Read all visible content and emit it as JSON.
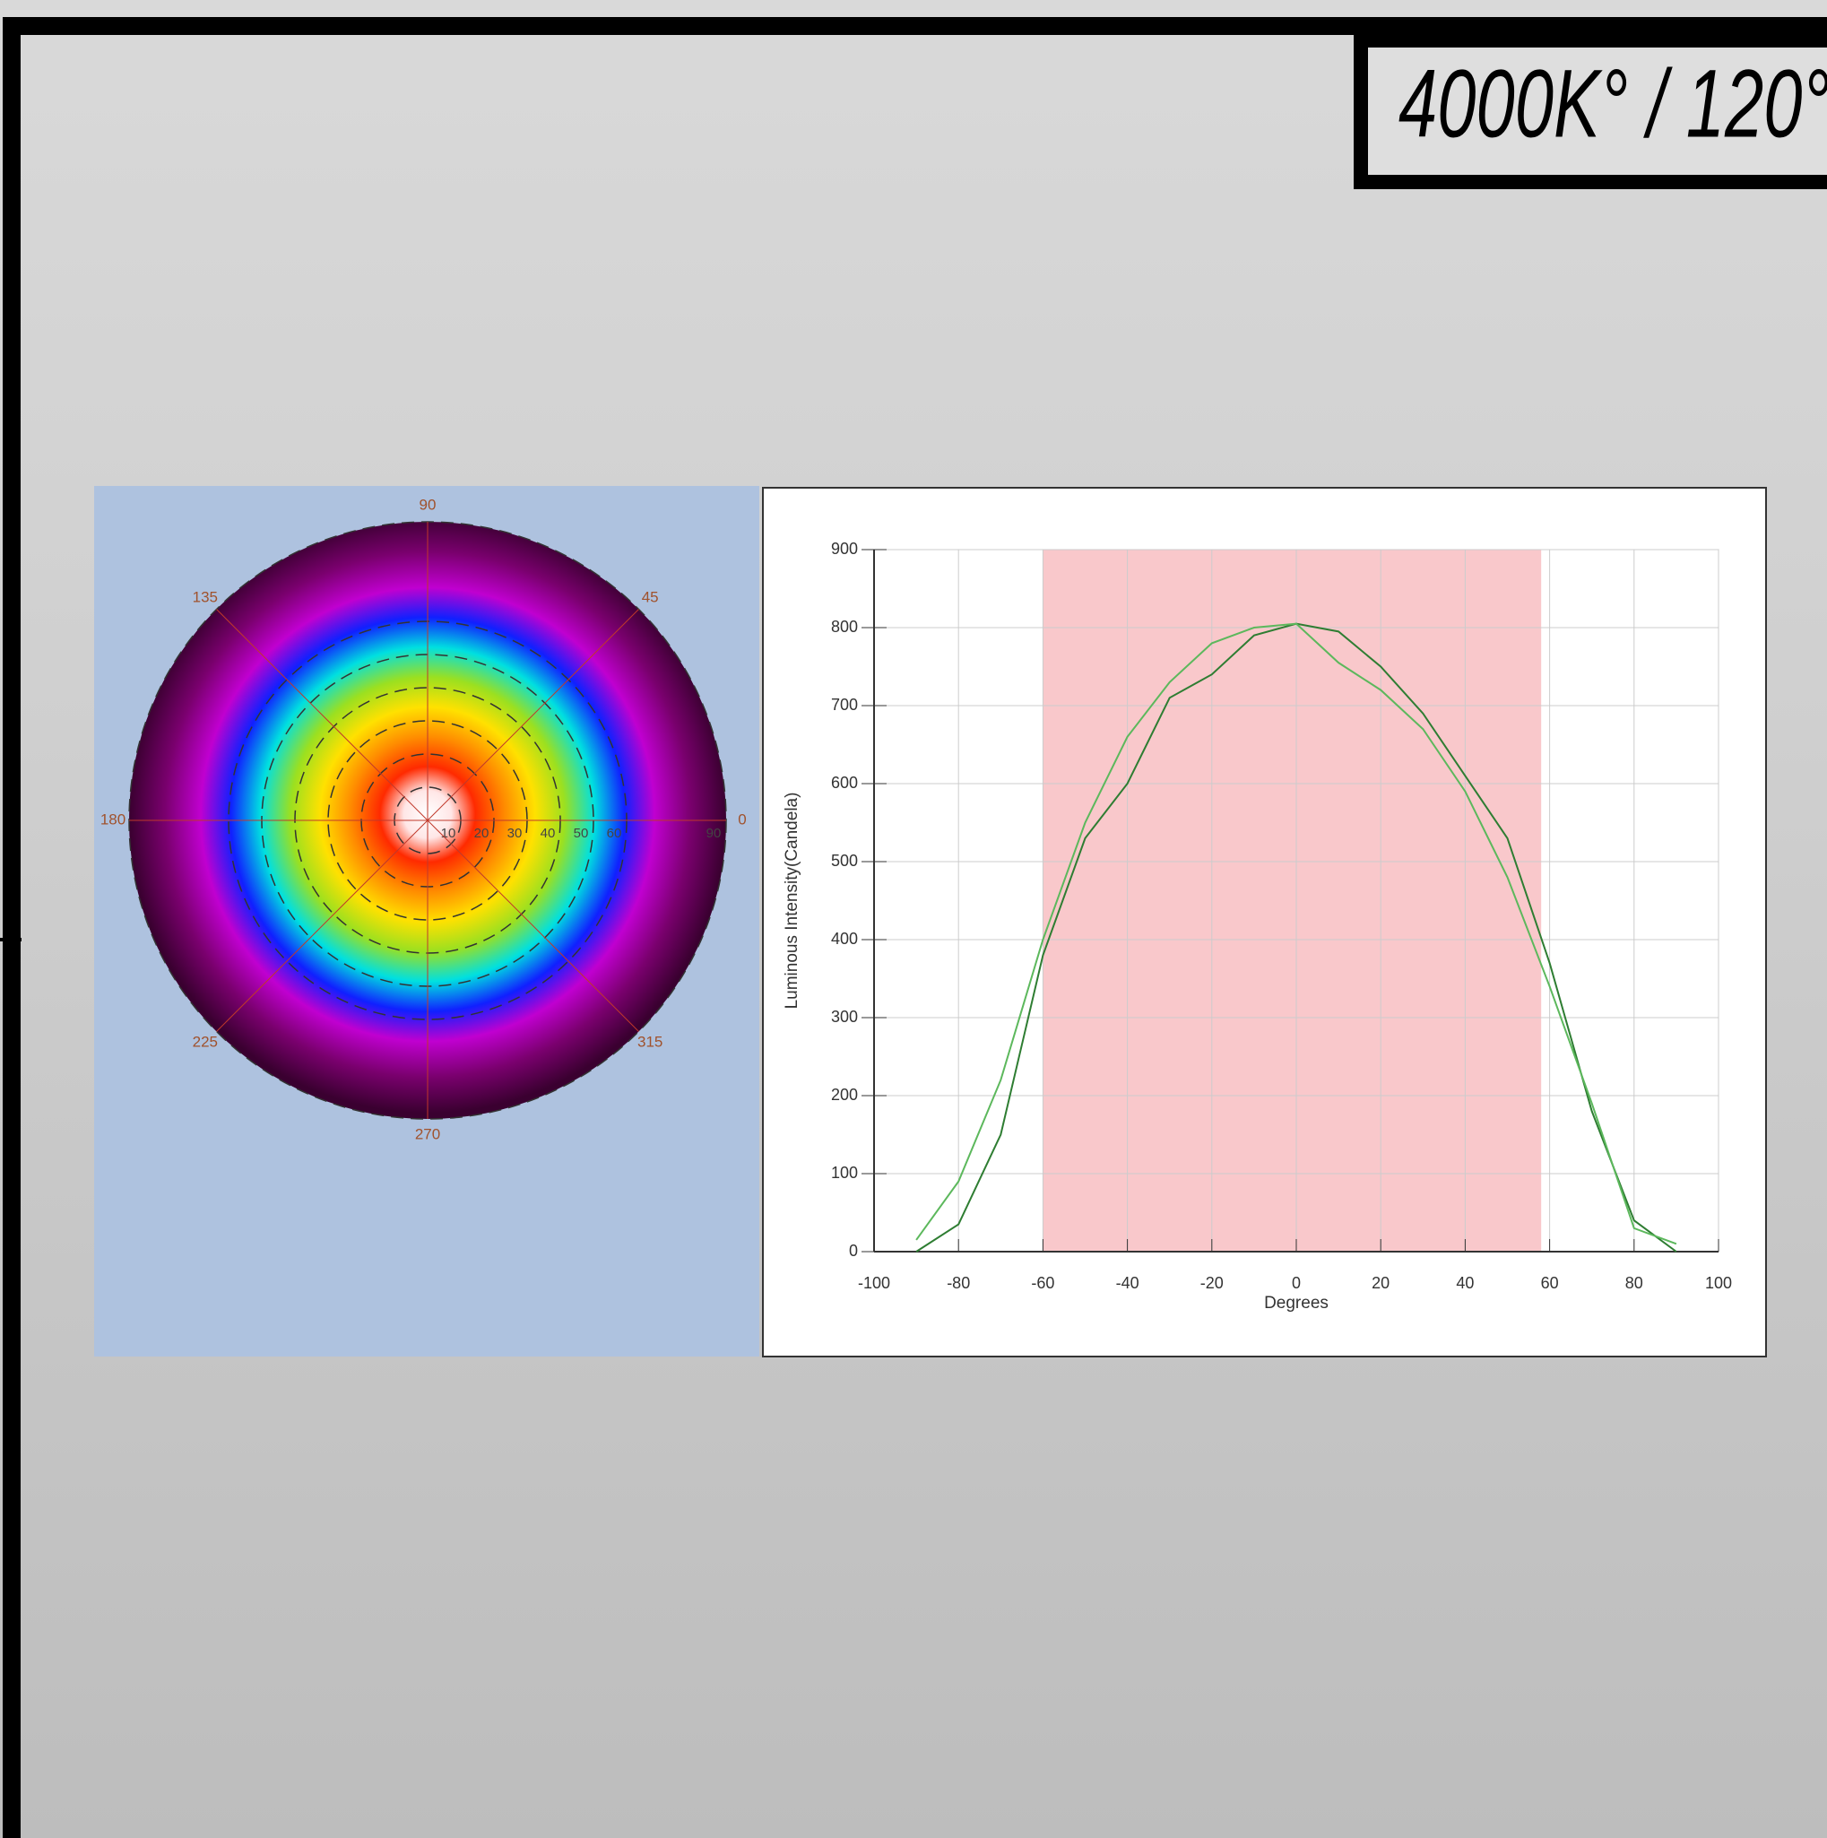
{
  "header": {
    "label": "4000K° / 120°"
  },
  "chart_data": [
    {
      "type": "polar-heatmap",
      "rlim": [
        0,
        90
      ],
      "angle_ticks": [
        0,
        45,
        90,
        135,
        180,
        225,
        270,
        315
      ],
      "radial_ticks": [
        10,
        20,
        30,
        40,
        50,
        60,
        90
      ]
    },
    {
      "type": "line",
      "xlabel": "Degrees",
      "ylabel": "Luminous Intensity(Candela)",
      "x": [
        -90,
        -80,
        -70,
        -60,
        -50,
        -40,
        -30,
        -20,
        -10,
        0,
        10,
        20,
        30,
        40,
        50,
        60,
        70,
        80,
        90
      ],
      "series": [
        {
          "color": "#2e7d32",
          "values": [
            0,
            35,
            150,
            380,
            530,
            600,
            710,
            740,
            790,
            805,
            795,
            750,
            690,
            610,
            530,
            370,
            180,
            40,
            0
          ]
        },
        {
          "color": "#5cb85c",
          "values": [
            15,
            90,
            220,
            400,
            550,
            660,
            730,
            780,
            800,
            805,
            755,
            720,
            670,
            590,
            480,
            340,
            190,
            30,
            10
          ]
        }
      ],
      "band": [
        -60,
        58
      ],
      "band_color": "#f9c8cb",
      "xlim": [
        -100,
        100
      ],
      "xticks": [
        -100,
        -80,
        -60,
        -40,
        -20,
        0,
        20,
        40,
        60,
        80,
        100
      ],
      "ylim": [
        0,
        900
      ],
      "yticks": [
        0,
        100,
        200,
        300,
        400,
        500,
        600,
        700,
        800,
        900
      ],
      "grid": true
    }
  ]
}
